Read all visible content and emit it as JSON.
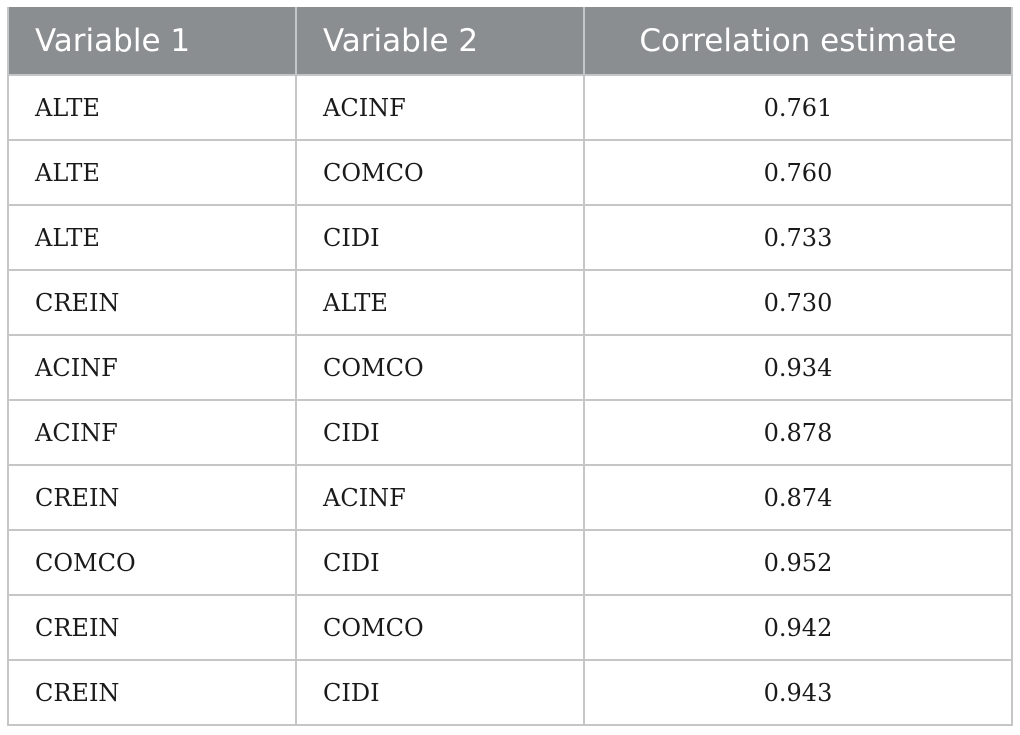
{
  "table": {
    "headers": [
      "Variable 1",
      "Variable 2",
      "Correlation estimate"
    ],
    "rows": [
      [
        "ALTE",
        "ACINF",
        "0.761"
      ],
      [
        "ALTE",
        "COMCO",
        "0.760"
      ],
      [
        "ALTE",
        "CIDI",
        "0.733"
      ],
      [
        "CREIN",
        "ALTE",
        "0.730"
      ],
      [
        "ACINF",
        "COMCO",
        "0.934"
      ],
      [
        "ACINF",
        "CIDI",
        "0.878"
      ],
      [
        "CREIN",
        "ACINF",
        "0.874"
      ],
      [
        "COMCO",
        "CIDI",
        "0.952"
      ],
      [
        "CREIN",
        "COMCO",
        "0.942"
      ],
      [
        "CREIN",
        "CIDI",
        "0.943"
      ]
    ]
  }
}
